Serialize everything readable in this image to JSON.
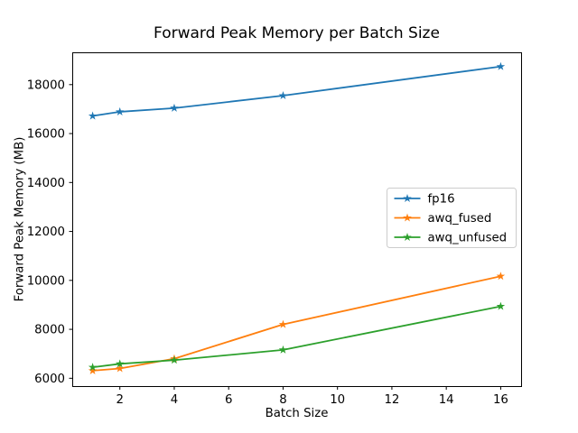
{
  "figure": {
    "background": "#ffffff",
    "axes_edge_color": "#000000",
    "tick_color": "#000000"
  },
  "chart_data": {
    "type": "line",
    "title": "Forward Peak Memory per Batch Size",
    "xlabel": "Batch Size",
    "ylabel": "Forward Peak Memory (MB)",
    "x": [
      1,
      2,
      4,
      8,
      16
    ],
    "series": [
      {
        "name": "fp16",
        "color": "#1f77b4",
        "marker": "star",
        "values": [
          16720,
          16890,
          17040,
          17550,
          18740
        ]
      },
      {
        "name": "awq_fused",
        "color": "#ff7f0e",
        "marker": "star",
        "values": [
          6310,
          6400,
          6800,
          8200,
          10170
        ]
      },
      {
        "name": "awq_unfused",
        "color": "#2ca02c",
        "marker": "star",
        "values": [
          6450,
          6590,
          6740,
          7160,
          8940
        ]
      }
    ],
    "xlim": [
      0.25,
      16.75
    ],
    "ylim": [
      5680,
      19320
    ],
    "xticks": [
      2,
      4,
      6,
      8,
      10,
      12,
      14,
      16
    ],
    "yticks": [
      6000,
      8000,
      10000,
      12000,
      14000,
      16000,
      18000
    ],
    "grid": false,
    "legend_position": "center right",
    "legend_border_color": "#cccccc",
    "legend_background": "#ffffff"
  }
}
